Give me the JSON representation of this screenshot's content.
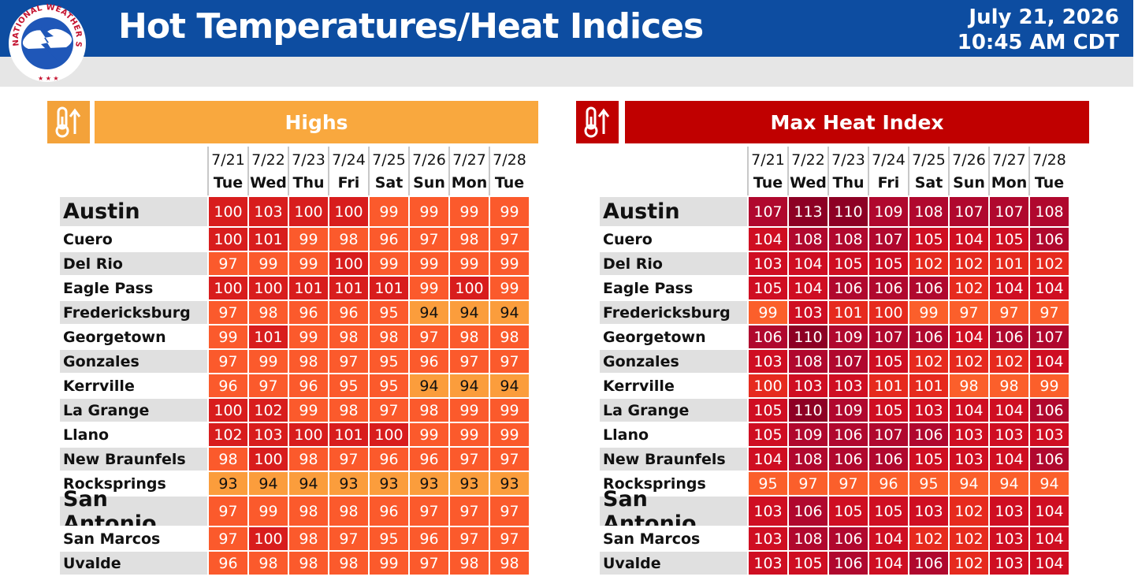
{
  "header": {
    "title": "Hot Temperatures/Heat Indices",
    "date": "July 21, 2026",
    "time": "10:45 AM CDT",
    "logo_text": "NATIONAL WEATHER SERVICE"
  },
  "colors": {
    "header_bg": "#0d4da1",
    "highs_header": "#f9a83e",
    "heat_header": "#c00000"
  },
  "dates": [
    "7/21",
    "7/22",
    "7/23",
    "7/24",
    "7/25",
    "7/26",
    "7/27",
    "7/28"
  ],
  "days": [
    "Tue",
    "Wed",
    "Thu",
    "Fri",
    "Sat",
    "Sun",
    "Mon",
    "Tue"
  ],
  "highs": {
    "label": "Highs",
    "icon": "thermometer-up-icon",
    "rows": [
      {
        "city": "Austin",
        "big": true,
        "values": [
          100,
          103,
          100,
          100,
          99,
          99,
          99,
          99
        ]
      },
      {
        "city": "Cuero",
        "values": [
          100,
          101,
          99,
          98,
          96,
          97,
          98,
          97
        ]
      },
      {
        "city": "Del Rio",
        "values": [
          97,
          99,
          99,
          100,
          99,
          99,
          99,
          99
        ]
      },
      {
        "city": "Eagle Pass",
        "values": [
          100,
          100,
          101,
          101,
          101,
          99,
          100,
          99
        ]
      },
      {
        "city": "Fredericksburg",
        "values": [
          97,
          98,
          96,
          96,
          95,
          94,
          94,
          94
        ]
      },
      {
        "city": "Georgetown",
        "values": [
          99,
          101,
          99,
          98,
          98,
          97,
          98,
          98
        ]
      },
      {
        "city": "Gonzales",
        "values": [
          97,
          99,
          98,
          97,
          95,
          96,
          97,
          97
        ]
      },
      {
        "city": "Kerrville",
        "values": [
          96,
          97,
          96,
          95,
          95,
          94,
          94,
          94
        ]
      },
      {
        "city": "La Grange",
        "values": [
          100,
          102,
          99,
          98,
          97,
          98,
          99,
          99
        ]
      },
      {
        "city": "Llano",
        "values": [
          102,
          103,
          100,
          101,
          100,
          99,
          99,
          99
        ]
      },
      {
        "city": "New Braunfels",
        "values": [
          98,
          100,
          98,
          97,
          96,
          96,
          97,
          97
        ]
      },
      {
        "city": "Rocksprings",
        "values": [
          93,
          94,
          94,
          93,
          93,
          93,
          93,
          93
        ]
      },
      {
        "city": "San Antonio",
        "big": true,
        "values": [
          97,
          99,
          98,
          98,
          96,
          97,
          97,
          97
        ]
      },
      {
        "city": "San Marcos",
        "values": [
          97,
          100,
          98,
          97,
          95,
          96,
          97,
          97
        ]
      },
      {
        "city": "Uvalde",
        "values": [
          96,
          98,
          98,
          98,
          99,
          97,
          98,
          98
        ]
      }
    ]
  },
  "heat_index": {
    "label": "Max Heat Index",
    "icon": "thermometer-up-icon",
    "rows": [
      {
        "city": "Austin",
        "big": true,
        "values": [
          107,
          113,
          110,
          109,
          108,
          107,
          107,
          108
        ]
      },
      {
        "city": "Cuero",
        "values": [
          104,
          108,
          108,
          107,
          105,
          104,
          105,
          106
        ]
      },
      {
        "city": "Del Rio",
        "values": [
          103,
          104,
          105,
          105,
          102,
          102,
          101,
          102
        ]
      },
      {
        "city": "Eagle Pass",
        "values": [
          105,
          104,
          106,
          106,
          106,
          102,
          104,
          104
        ]
      },
      {
        "city": "Fredericksburg",
        "values": [
          99,
          103,
          101,
          100,
          99,
          97,
          97,
          97
        ]
      },
      {
        "city": "Georgetown",
        "values": [
          106,
          110,
          109,
          107,
          106,
          104,
          106,
          107
        ]
      },
      {
        "city": "Gonzales",
        "values": [
          103,
          108,
          107,
          105,
          102,
          102,
          102,
          104
        ]
      },
      {
        "city": "Kerrville",
        "values": [
          100,
          103,
          103,
          101,
          101,
          98,
          98,
          99
        ]
      },
      {
        "city": "La Grange",
        "values": [
          105,
          110,
          109,
          105,
          103,
          104,
          104,
          106
        ]
      },
      {
        "city": "Llano",
        "values": [
          105,
          109,
          106,
          107,
          106,
          103,
          103,
          103
        ]
      },
      {
        "city": "New Braunfels",
        "values": [
          104,
          108,
          106,
          106,
          105,
          103,
          104,
          106
        ]
      },
      {
        "city": "Rocksprings",
        "values": [
          95,
          97,
          97,
          96,
          95,
          94,
          94,
          94
        ]
      },
      {
        "city": "San Antonio",
        "big": true,
        "values": [
          103,
          106,
          105,
          105,
          103,
          102,
          103,
          104
        ]
      },
      {
        "city": "San Marcos",
        "values": [
          103,
          108,
          106,
          104,
          102,
          102,
          103,
          104
        ]
      },
      {
        "city": "Uvalde",
        "values": [
          103,
          105,
          106,
          104,
          106,
          102,
          103,
          104
        ]
      }
    ]
  }
}
